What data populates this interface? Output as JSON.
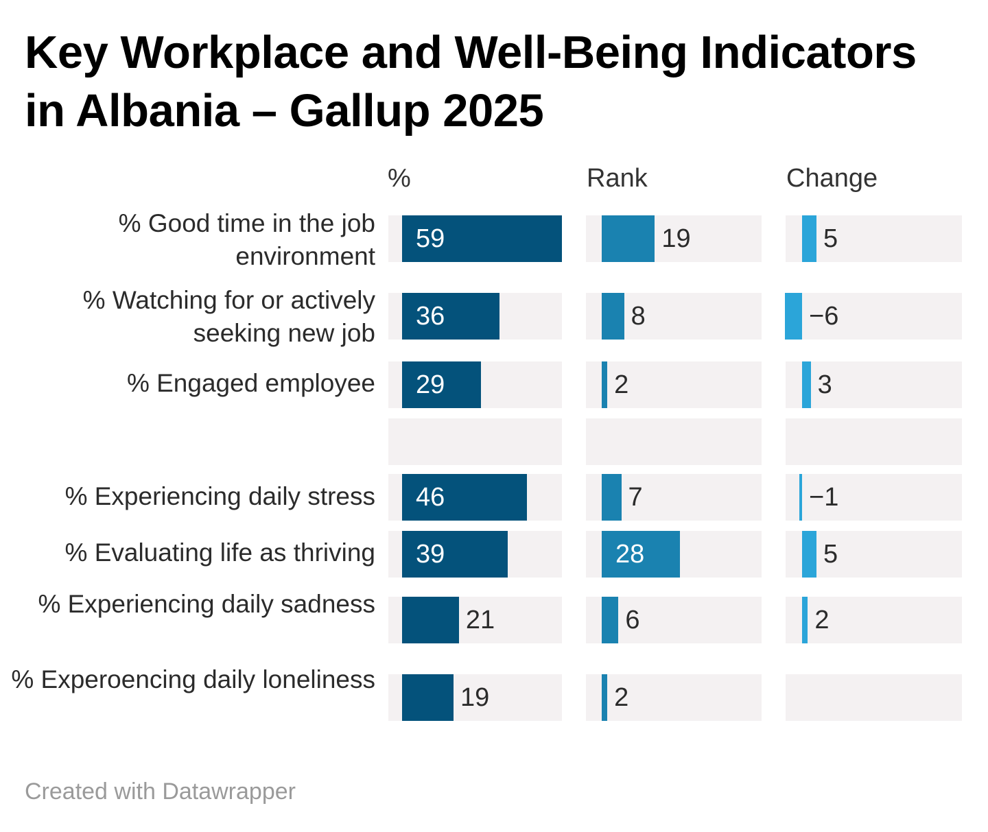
{
  "title": "Key Workplace and Well-Being Indicators in Albania – Gallup 2025",
  "footer": "Created with Datawrapper",
  "colors": {
    "pct": "#04527b",
    "rank": "#1a82b0",
    "change": "#2ba5d9",
    "track": "#f4f1f2"
  },
  "chart_data": {
    "type": "table",
    "columns": [
      "%",
      "Rank",
      "Change"
    ],
    "rows": [
      {
        "label": "% Good time in the job environment",
        "pct": 59,
        "rank": 19,
        "change": 5,
        "change_label": "5"
      },
      {
        "label": "% Watching for or actively seeking new job",
        "pct": 36,
        "rank": 8,
        "change": -6,
        "change_label": "−6"
      },
      {
        "label": "% Engaged employee",
        "pct": 29,
        "rank": 2,
        "change": 3,
        "change_label": "3"
      },
      {
        "label": "",
        "pct": null,
        "rank": null,
        "change": null,
        "change_label": ""
      },
      {
        "label": "% Experiencing daily stress",
        "pct": 46,
        "rank": 7,
        "change": -1,
        "change_label": "−1"
      },
      {
        "label": "% Evaluating life as thriving",
        "pct": 39,
        "rank": 28,
        "change": 5,
        "change_label": "5"
      },
      {
        "label": "% Experiencing daily sadness",
        "pct": 21,
        "rank": 6,
        "change": 2,
        "change_label": "2"
      },
      {
        "label": "% Experoencing daily loneliness",
        "pct": 19,
        "rank": 2,
        "change": null,
        "change_label": ""
      }
    ]
  }
}
